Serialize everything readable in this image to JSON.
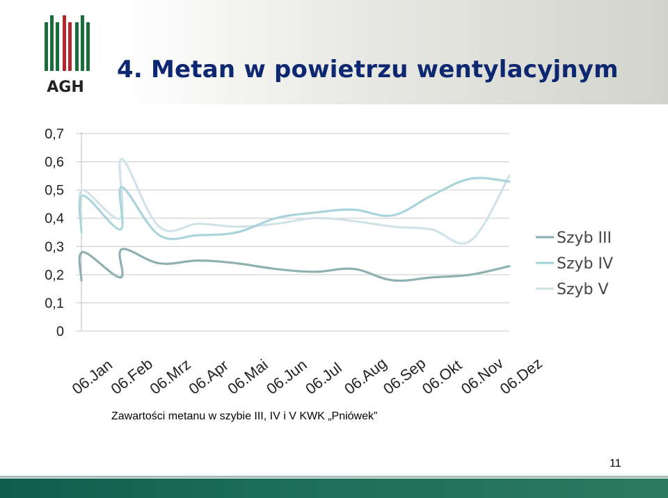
{
  "slide": {
    "title": "4. Metan w powietrzu wentylacyjnym",
    "caption": "Zawartości metanu w szybie III, IV i V KWK „Pniówek”",
    "page_number": "11",
    "logo_text": "AGH"
  },
  "colors": {
    "title": "#0d2770",
    "logo_green": "#1a6e3c",
    "logo_red": "#b3282d",
    "footer": "#0e5e4d",
    "szyb_iii": "#8fb0b1",
    "szyb_iv": "#a9d4db",
    "szyb_v": "#cfe3e8"
  },
  "chart_data": {
    "type": "line",
    "smooth": true,
    "categories": [
      "06.Jan",
      "06.Feb",
      "06.Mrz",
      "06.Apr",
      "06.Mai",
      "06.Jun",
      "06.Jul",
      "06.Aug",
      "06.Sep",
      "06.Okt",
      "06.Nov",
      "06.Dez"
    ],
    "y_tick_labels": [
      "0",
      "0,1",
      "0,2",
      "0,3",
      "0,4",
      "0,5",
      "0,6",
      "0,7"
    ],
    "ylim": [
      0,
      0.7
    ],
    "grid": true,
    "legend_position": "right",
    "series": [
      {
        "name": "Szyb III",
        "color": "#8fb0b1",
        "points": [
          [
            0,
            0.18
          ],
          [
            0.04,
            0.28
          ],
          [
            1,
            0.19
          ],
          [
            1.04,
            0.29
          ],
          [
            2,
            0.24
          ],
          [
            3,
            0.25
          ],
          [
            4,
            0.24
          ],
          [
            5,
            0.22
          ],
          [
            6,
            0.21
          ],
          [
            7,
            0.22
          ],
          [
            8,
            0.18
          ],
          [
            9,
            0.19
          ],
          [
            10,
            0.2
          ],
          [
            11,
            0.23
          ]
        ]
      },
      {
        "name": "Szyb IV",
        "color": "#a9d4db",
        "points": [
          [
            0,
            0.35
          ],
          [
            0.04,
            0.48
          ],
          [
            1,
            0.36
          ],
          [
            1.04,
            0.51
          ],
          [
            2,
            0.34
          ],
          [
            3,
            0.34
          ],
          [
            4,
            0.35
          ],
          [
            5,
            0.4
          ],
          [
            6,
            0.42
          ],
          [
            7,
            0.43
          ],
          [
            8,
            0.41
          ],
          [
            9,
            0.48
          ],
          [
            10,
            0.54
          ],
          [
            11,
            0.53
          ]
        ]
      },
      {
        "name": "Szyb V",
        "color": "#cfe3e8",
        "points": [
          [
            0,
            0.4
          ],
          [
            0.04,
            0.5
          ],
          [
            1,
            0.4
          ],
          [
            1.04,
            0.61
          ],
          [
            2,
            0.37
          ],
          [
            3,
            0.38
          ],
          [
            4,
            0.37
          ],
          [
            5,
            0.38
          ],
          [
            6,
            0.4
          ],
          [
            7,
            0.39
          ],
          [
            8,
            0.37
          ],
          [
            9,
            0.36
          ],
          [
            10,
            0.32
          ],
          [
            11,
            0.55
          ]
        ]
      }
    ]
  }
}
